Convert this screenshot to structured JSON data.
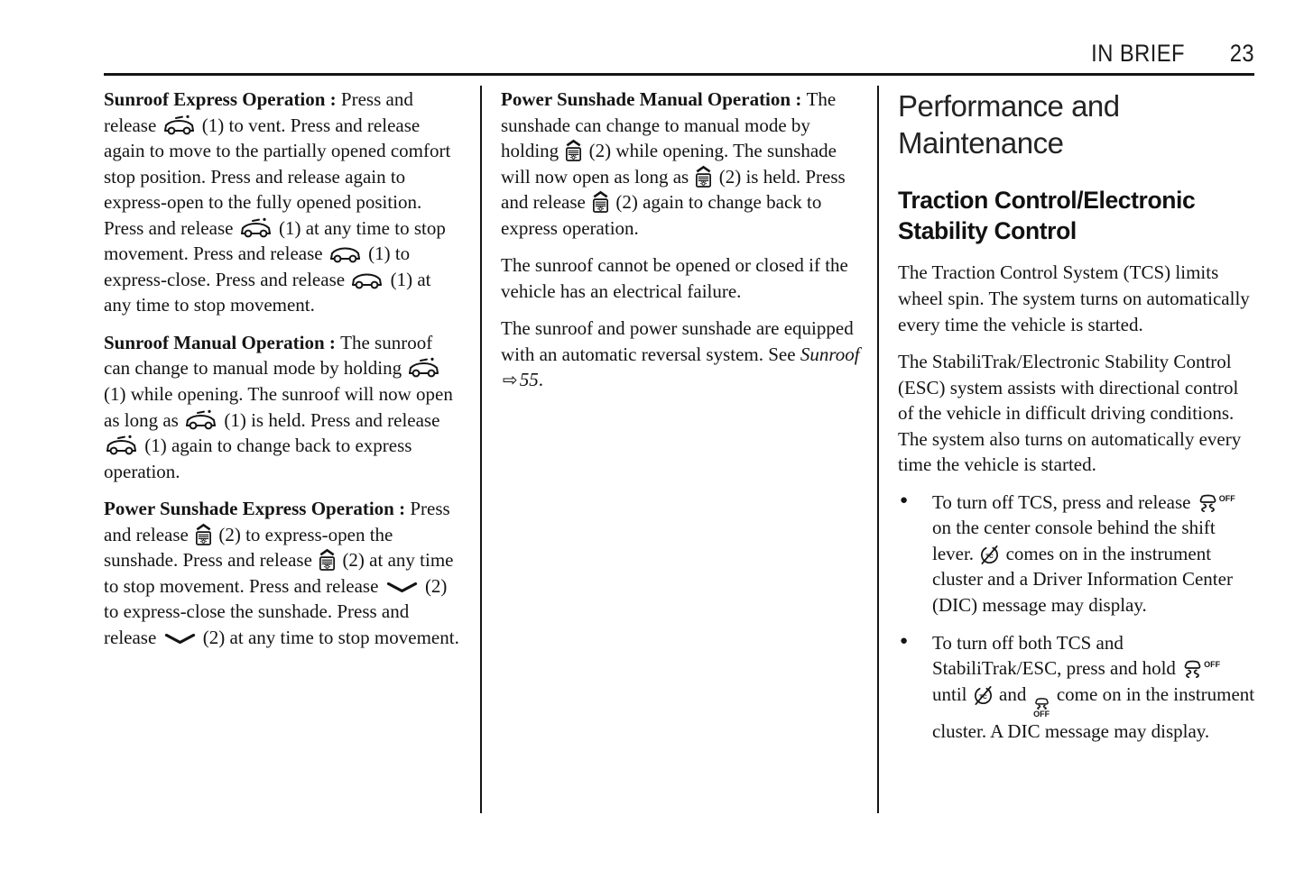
{
  "header": {
    "section": "IN BRIEF",
    "page": "23"
  },
  "accent_color": "#151515",
  "icon_labels": {
    "off": "OFF",
    "tc": "TC"
  },
  "icons": {
    "sunroof-vent-icon": "sunroof switch, vent position (car side view with tilted glass mark)",
    "sunroof-close-icon": "sunroof switch, close position (car side view, roof closed)",
    "sunshade-icon": "power sunshade open switch (shade box with sun and up caret)",
    "chevron-down-icon": "sunshade close switch (wide down chevron)",
    "traction-off-icon": "traction control off button (car with skid marks and OFF)",
    "tc-light-icon": "traction control warning lamp (tire with TC and slash)",
    "esc-off-icon": "StabiliTrak/ESC off indicator (car with skid marks over OFF)",
    "arrow-right-icon": "cross-reference arrow"
  },
  "columns": [
    {
      "blocks": [
        {
          "type": "para",
          "segments": [
            [
              "b",
              "Sunroof Express Operation : "
            ],
            [
              "t",
              "Press and release "
            ],
            [
              "ic",
              "sunroof-vent-icon"
            ],
            [
              "t",
              " (1) to vent. Press and release again to move to the partially opened comfort stop position. Press and release again to express-open to the fully opened position. Press and release "
            ],
            [
              "ic",
              "sunroof-vent-icon"
            ],
            [
              "t",
              " (1) at any time to stop movement. Press and release "
            ],
            [
              "ic",
              "sunroof-close-icon"
            ],
            [
              "t",
              " (1) to express-close. Press and release "
            ],
            [
              "ic",
              "sunroof-close-icon"
            ],
            [
              "t",
              " (1) at any time to stop movement."
            ]
          ]
        },
        {
          "type": "para",
          "segments": [
            [
              "b",
              "Sunroof Manual Operation : "
            ],
            [
              "t",
              "The sunroof can change to manual mode by holding "
            ],
            [
              "ic",
              "sunroof-vent-icon"
            ],
            [
              "t",
              " (1) while opening. The sunroof will now open as long as "
            ],
            [
              "ic",
              "sunroof-vent-icon"
            ],
            [
              "t",
              " (1) is held. Press and release "
            ],
            [
              "ic",
              "sunroof-vent-icon"
            ],
            [
              "t",
              " (1) again to change back to express operation."
            ]
          ]
        },
        {
          "type": "para",
          "segments": [
            [
              "b",
              "Power Sunshade Express Operation : "
            ],
            [
              "t",
              "Press and release "
            ],
            [
              "ic",
              "sunshade-icon"
            ],
            [
              "t",
              " (2) to express-open the sunshade. Press and release "
            ],
            [
              "ic",
              "sunshade-icon"
            ],
            [
              "t",
              " (2) at any time to stop movement. Press and release "
            ],
            [
              "ic",
              "chevron-down-icon"
            ],
            [
              "t",
              " (2) to express-close the sunshade. Press and release "
            ],
            [
              "ic",
              "chevron-down-icon"
            ],
            [
              "t",
              " (2) at any time to stop movement."
            ]
          ]
        }
      ]
    },
    {
      "blocks": [
        {
          "type": "para",
          "segments": [
            [
              "b",
              "Power Sunshade Manual Operation : "
            ],
            [
              "t",
              "The sunshade can change to manual mode by holding "
            ],
            [
              "ic",
              "sunshade-icon"
            ],
            [
              "t",
              " (2) while opening. The sunshade will now open as long as "
            ],
            [
              "ic",
              "sunshade-icon"
            ],
            [
              "t",
              " (2) is held. Press and release "
            ],
            [
              "ic",
              "sunshade-icon"
            ],
            [
              "t",
              " (2) again to change back to express operation."
            ]
          ]
        },
        {
          "type": "para",
          "segments": [
            [
              "t",
              "The sunroof cannot be opened or closed if the vehicle has an electrical failure."
            ]
          ]
        },
        {
          "type": "para",
          "segments": [
            [
              "t",
              "The sunroof and power sunshade are equipped with an automatic reversal system. See "
            ],
            [
              "i",
              "Sunroof"
            ],
            [
              "ic",
              "arrow-right-icon"
            ],
            [
              "i",
              "55"
            ],
            [
              "t",
              "."
            ]
          ]
        }
      ]
    },
    {
      "blocks": [
        {
          "type": "h1",
          "text": "Performance and Maintenance"
        },
        {
          "type": "h2",
          "text": "Traction Control/Electronic Stability Control"
        },
        {
          "type": "para",
          "segments": [
            [
              "t",
              "The Traction Control System (TCS) limits wheel spin. The system turns on automatically every time the vehicle is started."
            ]
          ]
        },
        {
          "type": "para",
          "segments": [
            [
              "t",
              "The StabiliTrak/Electronic Stability Control (ESC) system assists with directional control of the vehicle in difficult driving conditions. The system also turns on automatically every time the vehicle is started."
            ]
          ]
        },
        {
          "type": "bullets",
          "items": [
            {
              "segments": [
                [
                  "t",
                  "To turn off TCS, press and release "
                ],
                [
                  "ic",
                  "traction-off-icon"
                ],
                [
                  "t",
                  " on the center console behind the shift lever. "
                ],
                [
                  "ic",
                  "tc-light-icon"
                ],
                [
                  "t",
                  " comes on in the instrument cluster and a Driver Information Center (DIC) message may display."
                ]
              ]
            },
            {
              "segments": [
                [
                  "t",
                  "To turn off both TCS and StabiliTrak/ESC, press and hold "
                ],
                [
                  "ic",
                  "traction-off-icon"
                ],
                [
                  "t",
                  " until "
                ],
                [
                  "ic",
                  "tc-light-icon"
                ],
                [
                  "t",
                  " and "
                ],
                [
                  "ic",
                  "esc-off-icon"
                ],
                [
                  "t",
                  " come on in the instrument cluster. A DIC message may display."
                ]
              ]
            }
          ]
        }
      ]
    }
  ]
}
